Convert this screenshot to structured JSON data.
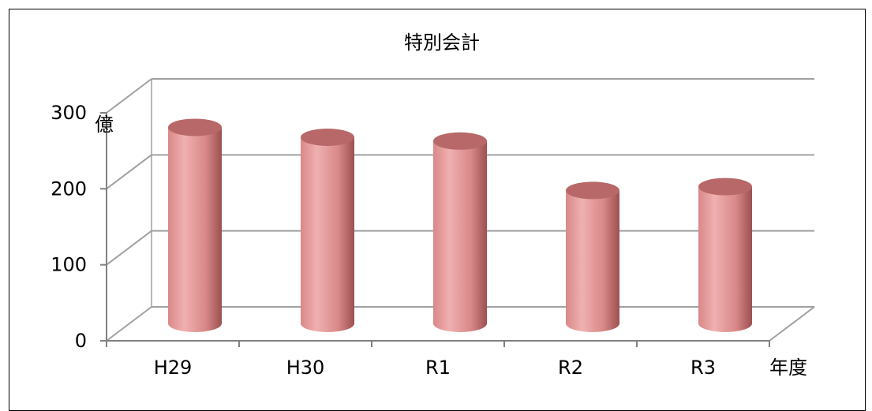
{
  "chart_data": {
    "type": "bar",
    "style": "3d-cylinder",
    "title": "特別会計",
    "categories": [
      "H29",
      "H30",
      "R1",
      "R2",
      "R3"
    ],
    "values": [
      258,
      245,
      240,
      175,
      180
    ],
    "ylim": [
      0,
      300
    ],
    "yticks": [
      0,
      100,
      200,
      300
    ],
    "ylabel": "億",
    "xlabel": "年度",
    "grid": true,
    "legend": "none",
    "colors": {
      "bar_light": "#f0b0b0",
      "bar_mid": "#d98888",
      "bar_dark": "#9c5050",
      "bar_top": "#b86868",
      "grid": "#a0a0a0",
      "axis": "#808080"
    }
  }
}
